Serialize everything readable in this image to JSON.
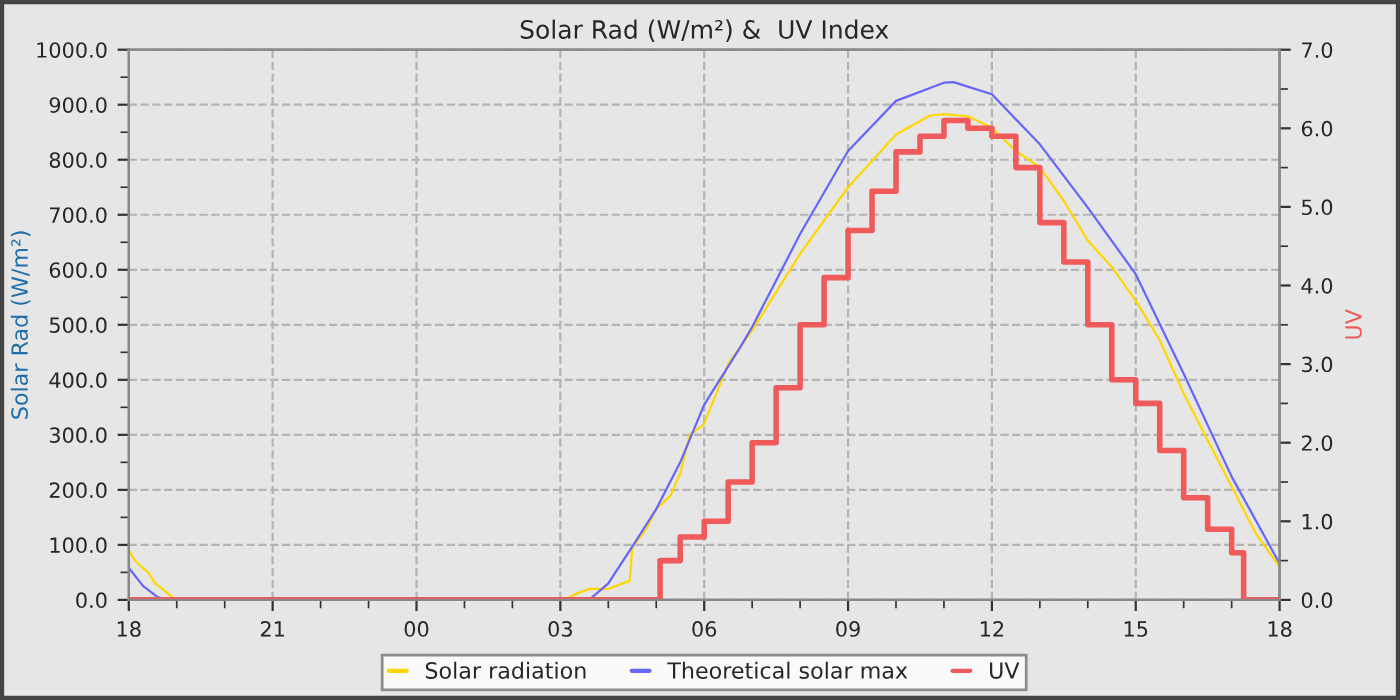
{
  "chart_data": {
    "type": "line",
    "title": "Solar Rad (W/m²) &  UV Index",
    "ylabel": "Solar Rad (W/m²)",
    "y2label": "UV",
    "xlim": [
      18,
      42
    ],
    "xticks": [
      {
        "value": 18,
        "label": "18"
      },
      {
        "value": 19,
        "label": null
      },
      {
        "value": 20,
        "label": null
      },
      {
        "value": 21,
        "label": "21"
      },
      {
        "value": 22,
        "label": null
      },
      {
        "value": 23,
        "label": null
      },
      {
        "value": 24,
        "label": "00"
      },
      {
        "value": 25,
        "label": null
      },
      {
        "value": 26,
        "label": null
      },
      {
        "value": 27,
        "label": "03"
      },
      {
        "value": 28,
        "label": null
      },
      {
        "value": 29,
        "label": null
      },
      {
        "value": 30,
        "label": "06"
      },
      {
        "value": 31,
        "label": null
      },
      {
        "value": 32,
        "label": null
      },
      {
        "value": 33,
        "label": "09"
      },
      {
        "value": 34,
        "label": null
      },
      {
        "value": 35,
        "label": null
      },
      {
        "value": 36,
        "label": "12"
      },
      {
        "value": 37,
        "label": null
      },
      {
        "value": 38,
        "label": null
      },
      {
        "value": 39,
        "label": "15"
      },
      {
        "value": 40,
        "label": null
      },
      {
        "value": 41,
        "label": null
      },
      {
        "value": 42,
        "label": "18"
      }
    ],
    "ylim": [
      0,
      1000
    ],
    "yticks": [
      {
        "value": 0,
        "label": "0.0"
      },
      {
        "value": 50,
        "label": null
      },
      {
        "value": 100,
        "label": "100.0"
      },
      {
        "value": 150,
        "label": null
      },
      {
        "value": 200,
        "label": "200.0"
      },
      {
        "value": 250,
        "label": null
      },
      {
        "value": 300,
        "label": "300.0"
      },
      {
        "value": 350,
        "label": null
      },
      {
        "value": 400,
        "label": "400.0"
      },
      {
        "value": 450,
        "label": null
      },
      {
        "value": 500,
        "label": "500.0"
      },
      {
        "value": 550,
        "label": null
      },
      {
        "value": 600,
        "label": "600.0"
      },
      {
        "value": 650,
        "label": null
      },
      {
        "value": 700,
        "label": "700.0"
      },
      {
        "value": 750,
        "label": null
      },
      {
        "value": 800,
        "label": "800.0"
      },
      {
        "value": 850,
        "label": null
      },
      {
        "value": 900,
        "label": "900.0"
      },
      {
        "value": 950,
        "label": null
      },
      {
        "value": 1000,
        "label": "1000.0"
      }
    ],
    "y2lim": [
      0,
      7
    ],
    "y2ticks": [
      {
        "value": 0,
        "label": "0.0"
      },
      {
        "value": 0.5,
        "label": null
      },
      {
        "value": 1,
        "label": "1.0"
      },
      {
        "value": 1.5,
        "label": null
      },
      {
        "value": 2,
        "label": "2.0"
      },
      {
        "value": 2.5,
        "label": null
      },
      {
        "value": 3,
        "label": "3.0"
      },
      {
        "value": 3.5,
        "label": null
      },
      {
        "value": 4,
        "label": "4.0"
      },
      {
        "value": 4.5,
        "label": null
      },
      {
        "value": 5,
        "label": "5.0"
      },
      {
        "value": 5.5,
        "label": null
      },
      {
        "value": 6,
        "label": "6.0"
      },
      {
        "value": 6.5,
        "label": null
      },
      {
        "value": 7,
        "label": "7.0"
      }
    ],
    "grid": true,
    "legend": "bottom",
    "series": [
      {
        "name": "Solar radiation",
        "color": "#ffd700",
        "x": [
          18,
          18.1,
          18.2,
          18.4,
          18.55,
          18.7,
          18.9,
          19,
          27.1,
          27.3,
          27.6,
          28,
          28.45,
          28.5,
          28.8,
          29,
          29.3,
          29.5,
          29.7,
          30,
          30.5,
          31,
          32,
          33,
          34,
          34.7,
          35,
          35.5,
          36,
          36.5,
          37,
          37.5,
          38,
          38.5,
          39,
          39.5,
          40,
          40.5,
          41,
          41.5,
          42
        ],
        "values": [
          90,
          75,
          65,
          50,
          30,
          20,
          5,
          0,
          0,
          10,
          20,
          20,
          35,
          95,
          130,
          165,
          190,
          230,
          300,
          320,
          429,
          490,
          629,
          750,
          846,
          880,
          883,
          879,
          858,
          816,
          786,
          725,
          653,
          605,
          544,
          472,
          375,
          290,
          206,
          121,
          60
        ]
      },
      {
        "name": "Theoretical solar max",
        "color": "#6666ff",
        "x": [
          18,
          18.3,
          18.6,
          18.8,
          27.6,
          28,
          28.5,
          29,
          29.5,
          30,
          30.75,
          31,
          32,
          33,
          34,
          35,
          35.2,
          36,
          37,
          38,
          39,
          40,
          41,
          42
        ],
        "values": [
          58,
          25,
          5,
          0,
          0,
          30,
          97,
          165,
          250,
          355,
          459,
          496,
          665,
          816,
          907,
          940,
          941,
          919,
          828,
          713,
          592,
          411,
          224,
          66
        ]
      },
      {
        "name": "UV",
        "type": "step",
        "axis": "y2",
        "color": "#f05a5a",
        "x": [
          18,
          29.08,
          29.5,
          30,
          30.5,
          31,
          31.5,
          32,
          32.5,
          33,
          33.5,
          34,
          34.5,
          35,
          35.5,
          36,
          36.5,
          37,
          37.5,
          38,
          38.5,
          39,
          39.5,
          40,
          40.5,
          41,
          41.25,
          42
        ],
        "values": [
          0,
          0.5,
          0.8,
          1.0,
          1.5,
          2.0,
          2.7,
          3.5,
          4.1,
          4.7,
          5.2,
          5.7,
          5.9,
          6.1,
          6.0,
          5.9,
          5.5,
          4.8,
          4.3,
          3.5,
          2.8,
          2.5,
          1.9,
          1.3,
          0.9,
          0.6,
          0,
          0
        ]
      }
    ]
  }
}
